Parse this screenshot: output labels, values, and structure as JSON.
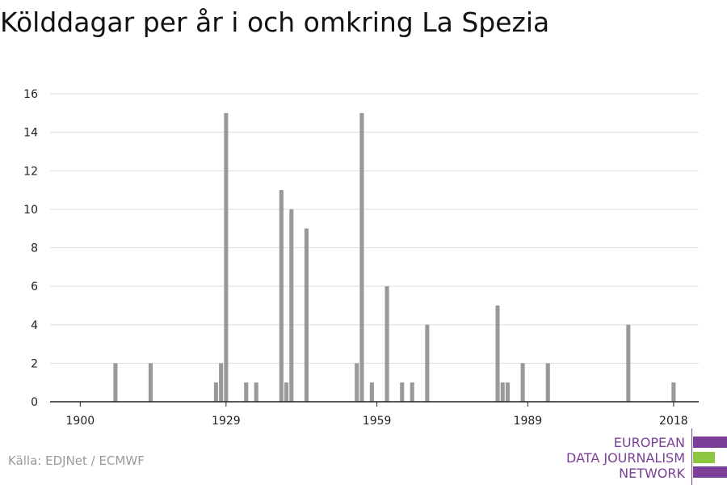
{
  "title": "Kölddagar per år i och omkring La Spezia",
  "source": "Källa: EDJNet / ECMWF",
  "logo": {
    "lines": [
      "EUROPEAN",
      "DATA JOURNALISM",
      "NETWORK"
    ],
    "colors": {
      "purple": "#7b3f98",
      "green": "#8dc63f"
    }
  },
  "chart_data": {
    "type": "bar",
    "title": "Kölddagar per år i och omkring La Spezia",
    "xlabel": "",
    "ylabel": "",
    "xlim": [
      1894,
      2023
    ],
    "ylim": [
      0,
      16
    ],
    "x_ticks": [
      1900,
      1929,
      1959,
      1989,
      2018
    ],
    "y_ticks": [
      0,
      2,
      4,
      6,
      8,
      10,
      12,
      14,
      16
    ],
    "grid": true,
    "bar_color": "#999999",
    "x": [
      1907,
      1914,
      1927,
      1928,
      1929,
      1933,
      1935,
      1940,
      1941,
      1942,
      1945,
      1955,
      1956,
      1958,
      1961,
      1964,
      1966,
      1969,
      1983,
      1984,
      1985,
      1988,
      1993,
      2009,
      2018
    ],
    "values": [
      2,
      2,
      1,
      2,
      15,
      1,
      1,
      11,
      1,
      10,
      9,
      2,
      15,
      1,
      6,
      1,
      1,
      4,
      5,
      1,
      1,
      2,
      2,
      4,
      1
    ]
  }
}
